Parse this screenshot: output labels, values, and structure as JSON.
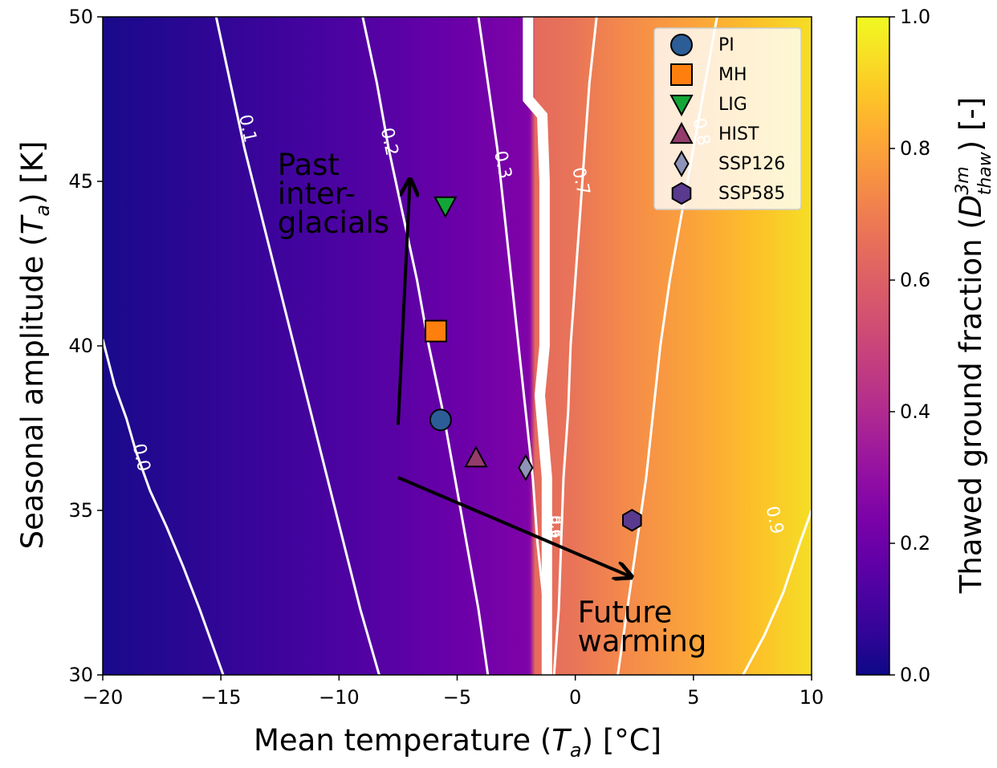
{
  "chart_data": {
    "type": "heatmap",
    "xlabel_main": "Mean temperature (",
    "xlabel_sym": "T",
    "xlabel_sub": "a",
    "xlabel_tail": ") [°C]",
    "ylabel_main": "Seasonal amplitude (",
    "ylabel_sym": "T",
    "ylabel_sub": "a",
    "ylabel_tail": ") [K]",
    "colorbar_label_main": "Thawed ground fraction (",
    "colorbar_label_sym": "D",
    "colorbar_label_sup": "3m",
    "colorbar_label_sub": "thaw",
    "colorbar_label_tail": ") [-]",
    "xlim": [
      -20,
      10
    ],
    "ylim": [
      30,
      50
    ],
    "clim": [
      0,
      1
    ],
    "colormap": "plasma",
    "xticks": [
      -20,
      -15,
      -10,
      -5,
      0,
      5,
      10
    ],
    "xtick_labels": [
      "−20",
      "−15",
      "−10",
      "−5",
      "0",
      "5",
      "10"
    ],
    "yticks": [
      30,
      35,
      40,
      45,
      50
    ],
    "ytick_labels": [
      "30",
      "35",
      "40",
      "45",
      "50"
    ],
    "cticks": [
      0.0,
      0.2,
      0.4,
      0.6,
      0.8,
      1.0
    ],
    "ctick_labels": [
      "0.0",
      "0.2",
      "0.4",
      "0.6",
      "0.8",
      "1.0"
    ],
    "contours": [
      {
        "level": "0.0",
        "points": [
          [
            -20,
            40.2
          ],
          [
            -19.5,
            38.8
          ],
          [
            -19,
            37.8
          ],
          [
            -18.6,
            36.8
          ],
          [
            -18,
            35.6
          ],
          [
            -17.3,
            34.5
          ],
          [
            -16.6,
            33.3
          ],
          [
            -15.9,
            32.0
          ],
          [
            -15.4,
            31.0
          ],
          [
            -14.9,
            30
          ]
        ],
        "label_at": [
          -18.4,
          36.6
        ]
      },
      {
        "level": "0.1",
        "points": [
          [
            -15.2,
            50
          ],
          [
            -14.6,
            48
          ],
          [
            -14,
            46
          ],
          [
            -13.3,
            44
          ],
          [
            -12.6,
            42
          ],
          [
            -11.9,
            40
          ],
          [
            -11.2,
            38
          ],
          [
            -10.5,
            36
          ],
          [
            -9.8,
            34
          ],
          [
            -9.1,
            32
          ],
          [
            -8.3,
            30
          ]
        ],
        "label_at": [
          -13.9,
          46.6
        ]
      },
      {
        "level": "0.2",
        "points": [
          [
            -9.0,
            50
          ],
          [
            -8.4,
            48
          ],
          [
            -7.9,
            46
          ],
          [
            -7.3,
            44
          ],
          [
            -6.7,
            42
          ],
          [
            -6.2,
            40
          ],
          [
            -5.6,
            38
          ],
          [
            -5.1,
            36
          ],
          [
            -4.6,
            34
          ],
          [
            -4.1,
            32
          ],
          [
            -3.7,
            30
          ]
        ],
        "label_at": [
          -7.9,
          46.2
        ]
      },
      {
        "level": "0.3",
        "points": [
          [
            -4.1,
            50
          ],
          [
            -3.7,
            48
          ],
          [
            -3.3,
            46
          ],
          [
            -3.0,
            44
          ],
          [
            -2.7,
            42
          ],
          [
            -2.4,
            40
          ],
          [
            -2.1,
            38
          ],
          [
            -1.8,
            36
          ],
          [
            -1.6,
            34
          ],
          [
            -1.3,
            32
          ],
          [
            -1.1,
            30
          ]
        ],
        "label_at": [
          -3.1,
          45.5
        ]
      },
      {
        "level": "0.7",
        "points": [
          [
            0.9,
            50
          ],
          [
            0.6,
            48
          ],
          [
            0.4,
            46
          ],
          [
            0.2,
            44
          ],
          [
            0.0,
            42
          ],
          [
            -0.2,
            40
          ],
          [
            -0.3,
            38
          ],
          [
            -0.5,
            36
          ],
          [
            -0.6,
            34
          ],
          [
            -0.7,
            32
          ],
          [
            -0.9,
            30
          ]
        ],
        "label_at": [
          0.2,
          45.0
        ]
      },
      {
        "level": "0.8",
        "points": [
          [
            6.0,
            50
          ],
          [
            5.5,
            48
          ],
          [
            5.0,
            46
          ],
          [
            4.5,
            44
          ],
          [
            4.0,
            42
          ],
          [
            3.6,
            40
          ],
          [
            3.3,
            38
          ],
          [
            3.0,
            36
          ],
          [
            2.6,
            34
          ],
          [
            2.2,
            32
          ],
          [
            1.8,
            30
          ]
        ],
        "label_at": [
          5.3,
          46.5
        ]
      },
      {
        "level": "0.9",
        "points": [
          [
            10,
            35.0
          ],
          [
            9.5,
            34.0
          ],
          [
            8.8,
            32.5
          ],
          [
            8.0,
            31.2
          ],
          [
            7.1,
            30
          ]
        ],
        "label_at": [
          8.4,
          34.7
        ]
      }
    ],
    "thick_band": [
      [
        -2.0,
        50
      ],
      [
        -2.0,
        47.5
      ],
      [
        -1.4,
        47.0
      ],
      [
        -1.3,
        45
      ],
      [
        -1.3,
        40
      ],
      [
        -1.5,
        38.5
      ],
      [
        -1.2,
        36
      ],
      [
        -1.2,
        30
      ]
    ],
    "band_labels": [
      "0.4",
      "0.5",
      "0.6"
    ],
    "annotations": [
      {
        "text_lines": [
          "Past",
          "inter-",
          "glacials"
        ],
        "x": -12.6,
        "y": 45.2
      },
      {
        "text_lines": [
          "Future",
          "warming"
        ],
        "x": 0.1,
        "y": 31.6
      }
    ],
    "arrows": [
      {
        "from": [
          -7.5,
          37.6
        ],
        "to": [
          -7.0,
          45.0
        ]
      },
      {
        "from": [
          -7.5,
          36.0
        ],
        "to": [
          2.3,
          33.0
        ]
      }
    ],
    "series": [
      {
        "name": "PI",
        "marker": "circle",
        "color": "#2c5d96",
        "x": -5.7,
        "y": 37.75
      },
      {
        "name": "MH",
        "marker": "square",
        "color": "#ff7f0e",
        "x": -5.9,
        "y": 40.45
      },
      {
        "name": "LIG",
        "marker": "triangle-down",
        "color": "#13a637",
        "x": -5.5,
        "y": 44.25
      },
      {
        "name": "HIST",
        "marker": "triangle-up",
        "color": "#943c6c",
        "x": -4.2,
        "y": 36.6
      },
      {
        "name": "SSP126",
        "marker": "diamond",
        "color": "#9093b8",
        "x": -2.1,
        "y": 36.3
      },
      {
        "name": "SSP585",
        "marker": "hexagon",
        "color": "#5a3a8f",
        "x": 2.4,
        "y": 34.7
      }
    ],
    "legend_position": "top-right",
    "grid": false
  }
}
